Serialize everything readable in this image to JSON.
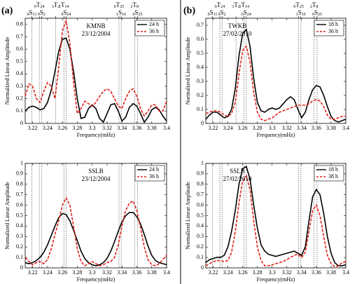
{
  "chart_data": [
    {
      "type": "line",
      "panel": "(a)",
      "title": "KMNB",
      "subtitle": "23/12/2004",
      "xlabel": "Frequency(mHz)",
      "ylabel": "Normalized Linear Amplitude",
      "xlim": [
        3.21,
        3.4
      ],
      "ylim": [
        0,
        0.85
      ],
      "xticks": [
        3.22,
        3.24,
        3.26,
        3.28,
        3.3,
        3.32,
        3.34,
        3.36,
        3.38,
        3.4
      ],
      "yticks": [
        0,
        0.1,
        0.2,
        0.3,
        0.4,
        0.5,
        0.6,
        0.7,
        0.8
      ],
      "legend": "upper right",
      "modes": [
        {
          "x": 3.219,
          "n": "0",
          "mode": "S",
          "l": "11"
        },
        {
          "x": 3.229,
          "n": "0",
          "mode": "T",
          "l": "24"
        },
        {
          "x": 3.232,
          "n": "9",
          "mode": "S",
          "l": "2"
        },
        {
          "x": 3.251,
          "n": "3",
          "mode": "T",
          "l": "2"
        },
        {
          "x": 3.262,
          "n": "1",
          "mode": "T",
          "l": "14"
        },
        {
          "x": 3.265,
          "n": "0",
          "mode": "S",
          "l": "24"
        },
        {
          "x": 3.336,
          "n": "0",
          "mode": "T",
          "l": "25"
        },
        {
          "x": 3.339,
          "n": "1",
          "mode": "S",
          "l": "16"
        },
        {
          "x": 3.357,
          "n": "2",
          "mode": "T",
          "l": "8"
        },
        {
          "x": 3.361,
          "n": "0",
          "mode": "S",
          "l": "25"
        }
      ],
      "x": [
        3.21,
        3.215,
        3.22,
        3.225,
        3.23,
        3.235,
        3.24,
        3.245,
        3.25,
        3.255,
        3.26,
        3.265,
        3.27,
        3.275,
        3.28,
        3.285,
        3.29,
        3.295,
        3.3,
        3.305,
        3.31,
        3.315,
        3.32,
        3.325,
        3.33,
        3.335,
        3.34,
        3.345,
        3.35,
        3.355,
        3.36,
        3.365,
        3.37,
        3.375,
        3.38,
        3.385,
        3.39,
        3.395,
        3.4
      ],
      "series": [
        {
          "name": "24 h",
          "color": "#000000",
          "dash": false,
          "values": [
            0.1,
            0.13,
            0.14,
            0.13,
            0.11,
            0.12,
            0.17,
            0.27,
            0.42,
            0.58,
            0.68,
            0.69,
            0.6,
            0.42,
            0.2,
            0.04,
            0.05,
            0.12,
            0.15,
            0.12,
            0.04,
            0.01,
            0.08,
            0.15,
            0.16,
            0.1,
            0.02,
            0.05,
            0.13,
            0.16,
            0.14,
            0.08,
            0.01,
            0.05,
            0.11,
            0.13,
            0.11,
            0.06,
            0.02
          ]
        },
        {
          "name": "36 h",
          "color": "#e0201b",
          "dash": true,
          "values": [
            0.22,
            0.32,
            0.3,
            0.2,
            0.17,
            0.26,
            0.33,
            0.3,
            0.2,
            0.45,
            0.75,
            0.83,
            0.65,
            0.33,
            0.08,
            0.12,
            0.18,
            0.16,
            0.14,
            0.17,
            0.22,
            0.26,
            0.28,
            0.26,
            0.2,
            0.14,
            0.12,
            0.2,
            0.26,
            0.28,
            0.22,
            0.12,
            0.06,
            0.1,
            0.15,
            0.15,
            0.1,
            0.1,
            0.18
          ]
        }
      ]
    },
    {
      "type": "line",
      "panel": "(b)",
      "title": "TWKB",
      "subtitle": "27/02/2010",
      "xlabel": "Frequency(mHz)",
      "ylabel": "Normalized Linear Amplitude",
      "xlim": [
        3.21,
        3.4
      ],
      "ylim": [
        0,
        0.75
      ],
      "xticks": [
        3.22,
        3.24,
        3.26,
        3.28,
        3.3,
        3.32,
        3.34,
        3.36,
        3.38,
        3.4
      ],
      "yticks": [
        0,
        0.1,
        0.2,
        0.3,
        0.4,
        0.5,
        0.6,
        0.7
      ],
      "legend": "upper right",
      "modes": [
        {
          "x": 3.219,
          "n": "0",
          "mode": "S",
          "l": "11"
        },
        {
          "x": 3.229,
          "n": "0",
          "mode": "T",
          "l": "24"
        },
        {
          "x": 3.232,
          "n": "9",
          "mode": "S",
          "l": "2"
        },
        {
          "x": 3.251,
          "n": "3",
          "mode": "T",
          "l": "2"
        },
        {
          "x": 3.262,
          "n": "1",
          "mode": "T",
          "l": "14"
        },
        {
          "x": 3.265,
          "n": "0",
          "mode": "S",
          "l": "24"
        },
        {
          "x": 3.336,
          "n": "0",
          "mode": "T",
          "l": "25"
        },
        {
          "x": 3.339,
          "n": "1",
          "mode": "S",
          "l": "16"
        },
        {
          "x": 3.357,
          "n": "2",
          "mode": "T",
          "l": "8"
        },
        {
          "x": 3.361,
          "n": "0",
          "mode": "S",
          "l": "25"
        }
      ],
      "x": [
        3.21,
        3.215,
        3.22,
        3.225,
        3.23,
        3.235,
        3.24,
        3.245,
        3.25,
        3.255,
        3.26,
        3.265,
        3.27,
        3.275,
        3.28,
        3.285,
        3.29,
        3.295,
        3.3,
        3.305,
        3.31,
        3.315,
        3.32,
        3.325,
        3.33,
        3.335,
        3.34,
        3.345,
        3.35,
        3.355,
        3.36,
        3.365,
        3.37,
        3.375,
        3.38,
        3.385,
        3.39,
        3.395,
        3.4
      ],
      "series": [
        {
          "name": "18 h",
          "color": "#000000",
          "dash": false,
          "values": [
            0.03,
            0.06,
            0.08,
            0.08,
            0.06,
            0.04,
            0.05,
            0.1,
            0.25,
            0.48,
            0.64,
            0.67,
            0.55,
            0.32,
            0.15,
            0.09,
            0.08,
            0.1,
            0.11,
            0.1,
            0.11,
            0.14,
            0.17,
            0.19,
            0.17,
            0.1,
            0.04,
            0.08,
            0.17,
            0.24,
            0.27,
            0.26,
            0.2,
            0.12,
            0.05,
            0.02,
            0.01,
            0.02,
            0.03
          ]
        },
        {
          "name": "36 h",
          "color": "#e0201b",
          "dash": true,
          "values": [
            0.07,
            0.08,
            0.09,
            0.09,
            0.08,
            0.06,
            0.05,
            0.07,
            0.15,
            0.35,
            0.52,
            0.55,
            0.44,
            0.22,
            0.08,
            0.03,
            0.02,
            0.03,
            0.04,
            0.06,
            0.08,
            0.09,
            0.1,
            0.11,
            0.12,
            0.13,
            0.13,
            0.13,
            0.14,
            0.16,
            0.17,
            0.16,
            0.12,
            0.06,
            0.03,
            0.03,
            0.04,
            0.05,
            0.05
          ]
        }
      ]
    },
    {
      "type": "line",
      "title": "SSLB",
      "subtitle": "23/12/2004",
      "xlabel": "Frequency(mHz)",
      "ylabel": "Normalized Linear Amplitude",
      "xlim": [
        3.21,
        3.4
      ],
      "ylim": [
        0,
        1
      ],
      "xticks": [
        3.22,
        3.24,
        3.26,
        3.28,
        3.3,
        3.32,
        3.34,
        3.36,
        3.38,
        3.4
      ],
      "yticks": [
        0,
        0.1,
        0.2,
        0.3,
        0.4,
        0.5,
        0.6,
        0.7,
        0.8,
        0.9,
        1
      ],
      "legend": "upper right",
      "mode_x": [
        3.219,
        3.229,
        3.232,
        3.262,
        3.265,
        3.336,
        3.339,
        3.357,
        3.361
      ],
      "x": [
        3.21,
        3.215,
        3.22,
        3.225,
        3.23,
        3.235,
        3.24,
        3.245,
        3.25,
        3.255,
        3.26,
        3.265,
        3.27,
        3.275,
        3.28,
        3.285,
        3.29,
        3.295,
        3.3,
        3.305,
        3.31,
        3.315,
        3.32,
        3.325,
        3.33,
        3.335,
        3.34,
        3.345,
        3.35,
        3.355,
        3.36,
        3.365,
        3.37,
        3.375,
        3.38,
        3.385,
        3.39,
        3.395,
        3.4
      ],
      "series": [
        {
          "name": "24 h",
          "color": "#000000",
          "dash": false,
          "values": [
            0.05,
            0.04,
            0.05,
            0.07,
            0.1,
            0.15,
            0.22,
            0.31,
            0.4,
            0.48,
            0.52,
            0.51,
            0.45,
            0.36,
            0.26,
            0.16,
            0.09,
            0.05,
            0.03,
            0.02,
            0.03,
            0.05,
            0.09,
            0.16,
            0.25,
            0.35,
            0.44,
            0.5,
            0.53,
            0.53,
            0.49,
            0.42,
            0.32,
            0.21,
            0.12,
            0.07,
            0.05,
            0.04,
            0.03
          ]
        },
        {
          "name": "36 h",
          "color": "#e0201b",
          "dash": true,
          "values": [
            0.1,
            0.06,
            0.03,
            0.05,
            0.06,
            0.04,
            0.08,
            0.18,
            0.32,
            0.45,
            0.6,
            0.67,
            0.6,
            0.4,
            0.18,
            0.06,
            0.02,
            0.04,
            0.06,
            0.04,
            0.02,
            0.03,
            0.05,
            0.06,
            0.1,
            0.22,
            0.4,
            0.55,
            0.62,
            0.64,
            0.55,
            0.38,
            0.2,
            0.08,
            0.03,
            0.02,
            0.04,
            0.08,
            0.12
          ]
        }
      ]
    },
    {
      "type": "line",
      "title": "SSLB",
      "subtitle": "27/02/2010",
      "xlabel": "Frequency(mHz)",
      "ylabel": "Normalized Linear Amplitude",
      "xlim": [
        3.21,
        3.4
      ],
      "ylim": [
        0,
        1
      ],
      "xticks": [
        3.22,
        3.24,
        3.26,
        3.28,
        3.3,
        3.32,
        3.34,
        3.36,
        3.38,
        3.4
      ],
      "yticks": [
        0,
        0.1,
        0.2,
        0.3,
        0.4,
        0.5,
        0.6,
        0.7,
        0.8,
        0.9,
        1
      ],
      "legend": "upper right",
      "mode_x": [
        3.219,
        3.229,
        3.232,
        3.262,
        3.265,
        3.336,
        3.339,
        3.357,
        3.361
      ],
      "x": [
        3.21,
        3.215,
        3.22,
        3.225,
        3.23,
        3.235,
        3.24,
        3.245,
        3.25,
        3.255,
        3.26,
        3.265,
        3.27,
        3.275,
        3.28,
        3.285,
        3.29,
        3.295,
        3.3,
        3.305,
        3.31,
        3.315,
        3.32,
        3.325,
        3.33,
        3.335,
        3.34,
        3.345,
        3.35,
        3.355,
        3.36,
        3.365,
        3.37,
        3.375,
        3.38,
        3.385,
        3.39,
        3.395,
        3.4
      ],
      "series": [
        {
          "name": "18 h",
          "color": "#000000",
          "dash": false,
          "values": [
            0.05,
            0.08,
            0.09,
            0.1,
            0.1,
            0.12,
            0.2,
            0.35,
            0.55,
            0.8,
            0.95,
            0.97,
            0.85,
            0.6,
            0.38,
            0.22,
            0.16,
            0.13,
            0.12,
            0.11,
            0.12,
            0.13,
            0.14,
            0.15,
            0.16,
            0.14,
            0.12,
            0.2,
            0.45,
            0.68,
            0.75,
            0.7,
            0.52,
            0.3,
            0.14,
            0.05,
            0.02,
            0.02,
            0.03
          ]
        },
        {
          "name": "38 h",
          "color": "#e0201b",
          "dash": true,
          "values": [
            0.02,
            0.04,
            0.06,
            0.07,
            0.07,
            0.06,
            0.07,
            0.15,
            0.35,
            0.62,
            0.83,
            0.88,
            0.75,
            0.45,
            0.2,
            0.07,
            0.02,
            0.02,
            0.03,
            0.04,
            0.05,
            0.06,
            0.08,
            0.1,
            0.12,
            0.13,
            0.1,
            0.15,
            0.35,
            0.55,
            0.6,
            0.5,
            0.3,
            0.12,
            0.04,
            0.01,
            0.02,
            0.05,
            0.06
          ]
        }
      ]
    }
  ]
}
